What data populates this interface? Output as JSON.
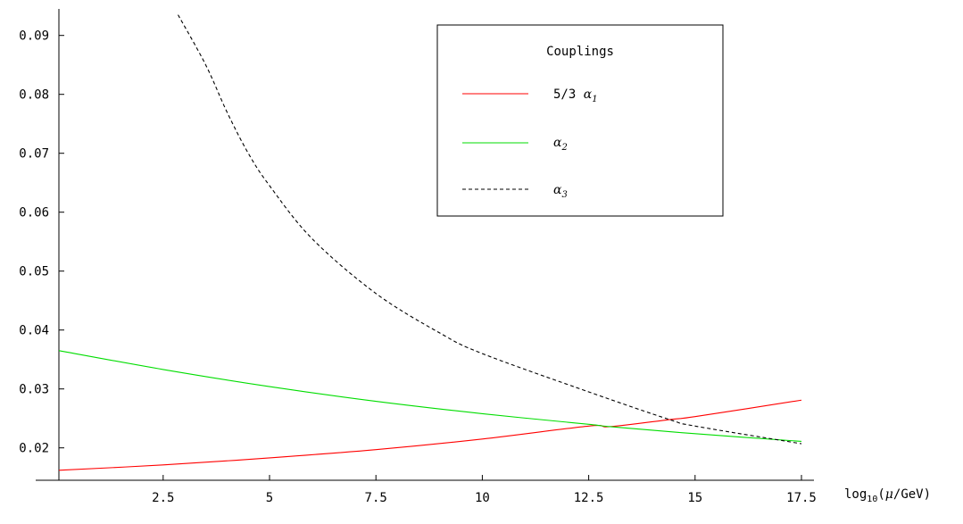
{
  "chart_data": {
    "type": "line",
    "title": "",
    "xlabel": {
      "prefix": "log",
      "sub": "10",
      "middle": "(",
      "greek": "μ",
      "suffix": "/GeV)"
    },
    "ylabel": "",
    "xlim": [
      0.05,
      17.5
    ],
    "ylim": [
      0.0145,
      0.0945
    ],
    "xticks": [
      2.5,
      5,
      7.5,
      10,
      12.5,
      15,
      17.5
    ],
    "xtick_labels": [
      "2.5",
      "5",
      "7.5",
      "10",
      "12.5",
      "15",
      "17.5"
    ],
    "yticks": [
      0.02,
      0.03,
      0.04,
      0.05,
      0.06,
      0.07,
      0.08,
      0.09
    ],
    "ytick_labels": [
      "0.02",
      "0.03",
      "0.04",
      "0.05",
      "0.06",
      "0.07",
      "0.08",
      "0.09"
    ],
    "grid": false,
    "legend": {
      "title": "Couplings",
      "placement": "top-center",
      "entries": [
        {
          "prefix": "5/3 ",
          "greek": "α",
          "sub": "1"
        },
        {
          "prefix": "",
          "greek": "α",
          "sub": "2"
        },
        {
          "prefix": "",
          "greek": "α",
          "sub": "3"
        }
      ]
    },
    "series": [
      {
        "color": "#ff0000",
        "dash": "solid",
        "x": [
          0.05,
          2.5,
          5,
          7.5,
          10,
          12.5,
          13.0,
          14.4,
          15,
          17.5
        ],
        "y": [
          0.0162,
          0.0171,
          0.0183,
          0.0197,
          0.0215,
          0.0237,
          0.0236,
          0.0248,
          0.0253,
          0.0281
        ]
      },
      {
        "color": "#00dd00",
        "dash": "solid",
        "x": [
          0.05,
          2.5,
          5,
          7.5,
          10,
          12.5,
          13.0,
          15,
          17.5
        ],
        "y": [
          0.0365,
          0.0333,
          0.0304,
          0.0279,
          0.0258,
          0.024,
          0.0236,
          0.0224,
          0.0211
        ]
      },
      {
        "color": "#000000",
        "dash": "dashed",
        "x": [
          2.85,
          3.5,
          4.0,
          4.5,
          5,
          6,
          7.5,
          9,
          10,
          12.5,
          14.4,
          15,
          17.5
        ],
        "y": [
          0.0935,
          0.085,
          0.077,
          0.07,
          0.0645,
          0.0555,
          0.0462,
          0.0395,
          0.036,
          0.0295,
          0.0248,
          0.0237,
          0.0207
        ]
      }
    ]
  }
}
